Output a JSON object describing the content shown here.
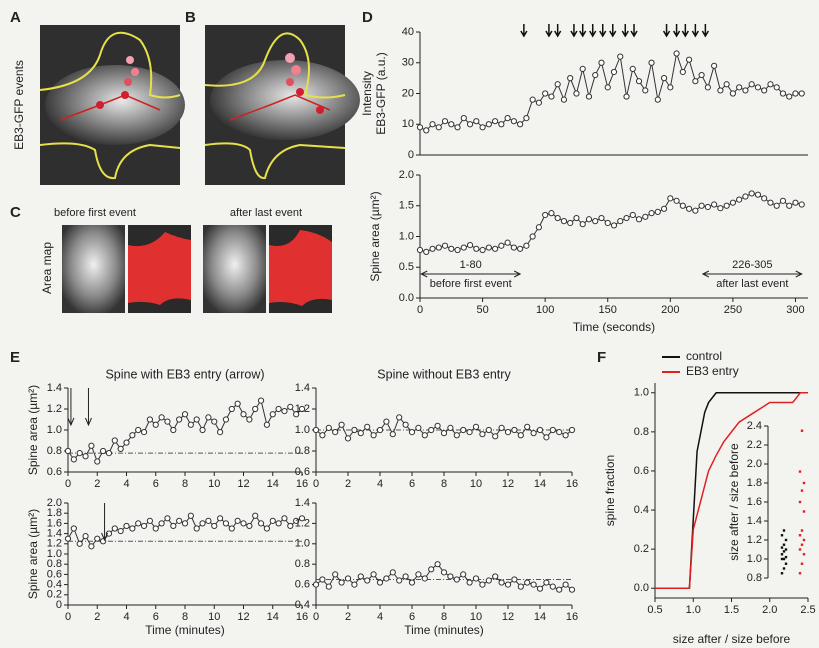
{
  "panel_labels": [
    "A",
    "B",
    "C",
    "D",
    "E",
    "F"
  ],
  "image_panels": {
    "events_label": "EB3-GFP events",
    "area_map_label": "Area map",
    "before": "before first event",
    "after": "after last event"
  },
  "chart_data": [
    {
      "type": "line",
      "color": "#333333",
      "x": [
        0,
        5,
        10,
        15,
        20,
        25,
        30,
        35,
        40,
        45,
        50,
        55,
        60,
        65,
        70,
        75,
        80,
        85,
        90,
        95,
        100,
        105,
        110,
        115,
        120,
        125,
        130,
        135,
        140,
        145,
        150,
        155,
        160,
        165,
        170,
        175,
        180,
        185,
        190,
        195,
        200,
        205,
        210,
        215,
        220,
        225,
        230,
        235,
        240,
        245,
        250,
        255,
        260,
        265,
        270,
        275,
        280,
        285,
        290,
        295,
        300,
        305
      ],
      "values": [
        9,
        8,
        10,
        9,
        11,
        10,
        9,
        12,
        10,
        11,
        9,
        10,
        11,
        10,
        12,
        11,
        10,
        12,
        18,
        17,
        20,
        19,
        23,
        18,
        25,
        20,
        28,
        19,
        26,
        30,
        22,
        27,
        32,
        19,
        28,
        24,
        21,
        30,
        18,
        25,
        22,
        33,
        27,
        31,
        24,
        26,
        22,
        29,
        21,
        23,
        20,
        22,
        21,
        23,
        22,
        21,
        23,
        22,
        20,
        19,
        20,
        20
      ],
      "xlim": [
        0,
        310
      ],
      "ylim": [
        0,
        40
      ],
      "yticks": [
        0,
        10,
        20,
        30,
        40
      ],
      "ylabel": [
        "Intensity",
        "EB3-GFP (a.u.)"
      ],
      "events": [
        83,
        103,
        110,
        123,
        130,
        138,
        146,
        154,
        164,
        171,
        197,
        205,
        212,
        220,
        228
      ]
    },
    {
      "type": "line",
      "color": "#333333",
      "x": [
        0,
        5,
        10,
        15,
        20,
        25,
        30,
        35,
        40,
        45,
        50,
        55,
        60,
        65,
        70,
        75,
        80,
        85,
        90,
        95,
        100,
        105,
        110,
        115,
        120,
        125,
        130,
        135,
        140,
        145,
        150,
        155,
        160,
        165,
        170,
        175,
        180,
        185,
        190,
        195,
        200,
        205,
        210,
        215,
        220,
        225,
        230,
        235,
        240,
        245,
        250,
        255,
        260,
        265,
        270,
        275,
        280,
        285,
        290,
        295,
        300,
        305
      ],
      "values": [
        0.78,
        0.75,
        0.8,
        0.82,
        0.85,
        0.8,
        0.78,
        0.82,
        0.86,
        0.8,
        0.78,
        0.82,
        0.8,
        0.85,
        0.9,
        0.82,
        0.8,
        0.85,
        1.0,
        1.15,
        1.35,
        1.38,
        1.3,
        1.25,
        1.22,
        1.3,
        1.2,
        1.28,
        1.25,
        1.3,
        1.22,
        1.18,
        1.25,
        1.3,
        1.35,
        1.28,
        1.32,
        1.38,
        1.4,
        1.45,
        1.62,
        1.58,
        1.5,
        1.45,
        1.42,
        1.5,
        1.48,
        1.52,
        1.46,
        1.5,
        1.55,
        1.6,
        1.65,
        1.7,
        1.68,
        1.62,
        1.55,
        1.5,
        1.58,
        1.5,
        1.55,
        1.52
      ],
      "xlim": [
        0,
        310
      ],
      "xticks": [
        0,
        50,
        100,
        150,
        200,
        250,
        300
      ],
      "ylim": [
        0,
        2.0
      ],
      "yticks": [
        {
          "value": 0,
          "label": "0.0"
        },
        0.5,
        {
          "value": 1,
          "label": "1.0"
        },
        1.5,
        {
          "value": 2,
          "label": "2.0"
        }
      ],
      "ylabel": "Spine area (µm²)",
      "xlabel": "Time (seconds)",
      "annotations": [
        {
          "text": "1-80",
          "note": "before first event",
          "range": [
            1,
            80
          ]
        },
        {
          "text": "226-305",
          "note": "after last event",
          "range": [
            226,
            305
          ]
        }
      ]
    },
    {
      "type": "line",
      "color": "#333333",
      "title": "Spine with EB3 entry (arrow)",
      "x": [
        0,
        0.4,
        0.8,
        1.2,
        1.6,
        2,
        2.4,
        2.8,
        3.2,
        3.6,
        4,
        4.4,
        4.8,
        5.2,
        5.6,
        6,
        6.4,
        6.8,
        7.2,
        7.6,
        8,
        8.4,
        8.8,
        9.2,
        9.6,
        10,
        10.4,
        10.8,
        11.2,
        11.6,
        12,
        12.4,
        12.8,
        13.2,
        13.6,
        14,
        14.4,
        14.8,
        15.2,
        15.6,
        16
      ],
      "values": [
        0.8,
        0.72,
        0.78,
        0.75,
        0.85,
        0.7,
        0.8,
        0.78,
        0.9,
        0.82,
        0.88,
        0.95,
        1.0,
        0.98,
        1.1,
        1.05,
        1.12,
        1.08,
        1.0,
        1.1,
        1.15,
        1.05,
        1.1,
        1.0,
        1.12,
        1.08,
        0.98,
        1.1,
        1.2,
        1.25,
        1.15,
        1.1,
        1.2,
        1.28,
        1.05,
        1.15,
        1.2,
        1.18,
        1.22,
        1.15,
        1.2
      ],
      "xlim": [
        0,
        16
      ],
      "xticks": [
        0,
        2,
        4,
        6,
        8,
        10,
        12,
        14,
        16
      ],
      "ylim": [
        0.6,
        1.4
      ],
      "yticks": [
        0.6,
        0.8,
        {
          "value": 1,
          "label": "1.0"
        },
        1.2,
        1.4
      ],
      "ylabel": "Spine area (µm²)",
      "reference": 0.78,
      "arrows": [
        0.2,
        1.4
      ]
    },
    {
      "type": "line",
      "color": "#333333",
      "x": [
        0,
        0.4,
        0.8,
        1.2,
        1.6,
        2,
        2.4,
        2.8,
        3.2,
        3.6,
        4,
        4.4,
        4.8,
        5.2,
        5.6,
        6,
        6.4,
        6.8,
        7.2,
        7.6,
        8,
        8.4,
        8.8,
        9.2,
        9.6,
        10,
        10.4,
        10.8,
        11.2,
        11.6,
        12,
        12.4,
        12.8,
        13.2,
        13.6,
        14,
        14.4,
        14.8,
        15.2,
        15.6,
        16
      ],
      "values": [
        1.3,
        1.5,
        1.2,
        1.35,
        1.15,
        1.3,
        1.25,
        1.4,
        1.5,
        1.45,
        1.55,
        1.5,
        1.6,
        1.55,
        1.65,
        1.5,
        1.6,
        1.7,
        1.55,
        1.65,
        1.6,
        1.75,
        1.5,
        1.6,
        1.65,
        1.55,
        1.7,
        1.6,
        1.5,
        1.65,
        1.6,
        1.55,
        1.75,
        1.6,
        1.5,
        1.65,
        1.6,
        1.7,
        1.55,
        1.65,
        1.7
      ],
      "xlim": [
        0,
        16
      ],
      "xticks": [
        0,
        2,
        4,
        6,
        8,
        10,
        12,
        14,
        16
      ],
      "ylim": [
        0,
        2.0
      ],
      "yticks": [
        0,
        0.2,
        0.4,
        0.6,
        0.8,
        {
          "value": 1,
          "label": "1.0"
        },
        1.2,
        1.4,
        1.6,
        1.8,
        {
          "value": 2,
          "label": "2.0"
        }
      ],
      "ylabel": "Spine area (µm²)",
      "xlabel": "Time (minutes)",
      "reference": 1.25,
      "arrows": [
        2.5
      ]
    },
    {
      "type": "line",
      "color": "#333333",
      "title": "Spine without EB3 entry",
      "x": [
        0,
        0.4,
        0.8,
        1.2,
        1.6,
        2,
        2.4,
        2.8,
        3.2,
        3.6,
        4,
        4.4,
        4.8,
        5.2,
        5.6,
        6,
        6.4,
        6.8,
        7.2,
        7.6,
        8,
        8.4,
        8.8,
        9.2,
        9.6,
        10,
        10.4,
        10.8,
        11.2,
        11.6,
        12,
        12.4,
        12.8,
        13.2,
        13.6,
        14,
        14.4,
        14.8,
        15.2,
        15.6,
        16
      ],
      "values": [
        1.0,
        0.95,
        1.02,
        0.98,
        1.05,
        0.92,
        1.0,
        0.97,
        1.03,
        0.95,
        1.0,
        1.08,
        0.96,
        1.12,
        1.05,
        0.98,
        1.02,
        0.95,
        1.0,
        1.04,
        0.97,
        1.02,
        0.95,
        1.0,
        0.98,
        1.03,
        0.96,
        1.0,
        0.94,
        1.02,
        0.98,
        1.0,
        0.95,
        1.03,
        0.97,
        1.0,
        0.93,
        1.0,
        0.98,
        0.95,
        1.0
      ],
      "xlim": [
        0,
        16
      ],
      "xticks": [
        0,
        2,
        4,
        6,
        8,
        10,
        12,
        14,
        16
      ],
      "ylim": [
        0.6,
        1.4
      ],
      "yticks": [
        0.6,
        0.8,
        {
          "value": 1,
          "label": "1.0"
        },
        1.2,
        1.4
      ],
      "reference": 1.0
    },
    {
      "type": "line",
      "color": "#333333",
      "x": [
        0,
        0.4,
        0.8,
        1.2,
        1.6,
        2,
        2.4,
        2.8,
        3.2,
        3.6,
        4,
        4.4,
        4.8,
        5.2,
        5.6,
        6,
        6.4,
        6.8,
        7.2,
        7.6,
        8,
        8.4,
        8.8,
        9.2,
        9.6,
        10,
        10.4,
        10.8,
        11.2,
        11.6,
        12,
        12.4,
        12.8,
        13.2,
        13.6,
        14,
        14.4,
        14.8,
        15.2,
        15.6,
        16
      ],
      "values": [
        0.6,
        0.65,
        0.58,
        0.7,
        0.62,
        0.66,
        0.6,
        0.68,
        0.64,
        0.7,
        0.62,
        0.66,
        0.72,
        0.64,
        0.68,
        0.62,
        0.7,
        0.66,
        0.75,
        0.8,
        0.72,
        0.68,
        0.65,
        0.7,
        0.62,
        0.66,
        0.6,
        0.64,
        0.68,
        0.62,
        0.6,
        0.65,
        0.58,
        0.62,
        0.6,
        0.56,
        0.62,
        0.58,
        0.55,
        0.6,
        0.55
      ],
      "xlim": [
        0,
        16
      ],
      "xticks": [
        0,
        2,
        4,
        6,
        8,
        10,
        12,
        14,
        16
      ],
      "ylim": [
        0.4,
        1.4
      ],
      "yticks": [
        0.4,
        0.6,
        0.8,
        {
          "value": 1,
          "label": "1.0"
        },
        1.2,
        1.4
      ],
      "xlabel": "Time (minutes)",
      "reference": 0.65
    },
    {
      "type": "line",
      "series": [
        {
          "name": "control",
          "color": "#111111",
          "x": [
            0.5,
            0.95,
            1.0,
            1.05,
            1.1,
            1.15,
            1.2,
            1.3,
            2.5
          ],
          "values": [
            0,
            0,
            0.35,
            0.7,
            0.8,
            0.9,
            0.95,
            1.0,
            1.0
          ]
        },
        {
          "name": "EB3 entry",
          "color": "#e02020",
          "x": [
            0.5,
            0.95,
            1.0,
            1.1,
            1.2,
            1.3,
            1.4,
            1.5,
            1.6,
            1.8,
            2.0,
            2.3,
            2.4,
            2.5
          ],
          "values": [
            0,
            0,
            0.3,
            0.45,
            0.6,
            0.68,
            0.75,
            0.8,
            0.85,
            0.9,
            0.95,
            0.95,
            1.0,
            1.0
          ]
        }
      ],
      "xlim": [
        0.5,
        2.5
      ],
      "xticks": [
        0.5,
        {
          "value": 1,
          "label": "1.0"
        },
        1.5,
        {
          "value": 2,
          "label": "2.0"
        },
        2.5
      ],
      "ylim": [
        -0.05,
        1.05
      ],
      "yticks": [
        {
          "value": 0,
          "label": "0.0"
        },
        0.2,
        0.4,
        0.6,
        0.8,
        {
          "value": 1,
          "label": "1.0"
        }
      ],
      "xlabel": "size after / size before",
      "ylabel": "spine fraction"
    },
    {
      "type": "strip",
      "series": [
        {
          "color": "#111111",
          "values": [
            0.85,
            0.9,
            0.95,
            1.0,
            1.0,
            1.02,
            1.05,
            1.08,
            1.1,
            1.12,
            1.15,
            1.2,
            1.25,
            1.3
          ]
        },
        {
          "color": "#e02020",
          "values": [
            0.85,
            0.95,
            1.05,
            1.1,
            1.15,
            1.2,
            1.25,
            1.3,
            1.5,
            1.6,
            1.72,
            1.8,
            1.92,
            2.35
          ]
        }
      ],
      "ylim": [
        0.8,
        2.4
      ],
      "yticks": [
        0.8,
        {
          "value": 1,
          "label": "1.0"
        },
        1.2,
        1.4,
        1.6,
        1.8,
        {
          "value": 2,
          "label": "2.0"
        },
        2.2,
        2.4
      ],
      "ylabel": "size after / size before"
    }
  ]
}
